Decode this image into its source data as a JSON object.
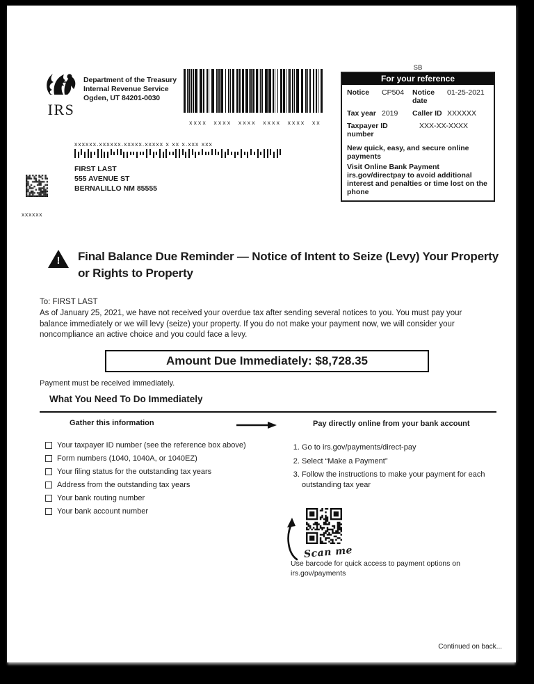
{
  "sender": {
    "logo": "IRS",
    "department": "Department of the Treasury",
    "agency": "Internal Revenue Service",
    "address": "Ogden, UT 84201-0030"
  },
  "notice_barcode_label": "xxxx xxxx  xxxx xxxx xxxx xx",
  "reference_box": {
    "si_code": "SB",
    "title": "For your reference",
    "notice_label": "Notice",
    "notice_value": "CP504",
    "notice_date_label": "Notice date",
    "notice_date_value": "01-25-2021",
    "tax_year_label": "Tax year",
    "tax_year_value": "2019",
    "caller_id_label": "Caller ID",
    "caller_id_value": "XXXXXX",
    "taxpayer_id_label": "Taxpayer ID number",
    "taxpayer_id_value": "XXX-XX-XXXX",
    "promo_title": "New quick, easy, and secure online payments",
    "promo_body": "Visit Online Bank Payment irs.gov/directpay to avoid additional interest and penalties or time lost on the phone"
  },
  "recipient": {
    "routing_code": "xxxxxx.xxxxxx.xxxxx.xxxxx x xx x.xxx xxx",
    "name": "FIRST LAST",
    "street": "555 AVENUE ST",
    "city_state_zip": "BERNALILLO NM 85555"
  },
  "left_margin_code": "xxxxxx",
  "notice": {
    "title": "Final Balance Due Reminder — Notice of Intent to Seize (Levy) Your Property or Rights to Property",
    "to_line": "To: FIRST LAST",
    "body": "As of January 25, 2021, we have not received your overdue tax after sending several notices to you. You must pay your balance immediately or we will levy (seize) your property. If you do not make your payment now, we will consider your noncompliance an active choice and you could face a levy.",
    "amount_due": "Amount Due Immediately: $8,728.35",
    "payment_note": "Payment must be received immediately."
  },
  "action_section": {
    "heading": "What You Need To Do Immediately",
    "gather": {
      "subheading": "Gather this information",
      "items": [
        "Your taxpayer ID number (see the reference box above)",
        "Form numbers (1040, 1040A, or 1040EZ)",
        "Your filing status for the outstanding tax years",
        "Address from the outstanding tax years",
        "Your bank routing number",
        "Your bank account number"
      ]
    },
    "pay": {
      "subheading": "Pay directly online from your bank account",
      "steps": [
        "Go to irs.gov/payments/direct-pay",
        "Select “Make a Payment”",
        "Follow the instructions to make your payment for each outstanding tax year"
      ],
      "scan_label": "Scan me",
      "barcode_note": "Use barcode for quick access to payment options on irs.gov/payments"
    }
  },
  "footer": {
    "continued": "Continued on back..."
  },
  "colors": {
    "ink": "#1c1c1c",
    "paper": "#ffffff",
    "background": "#000000"
  }
}
